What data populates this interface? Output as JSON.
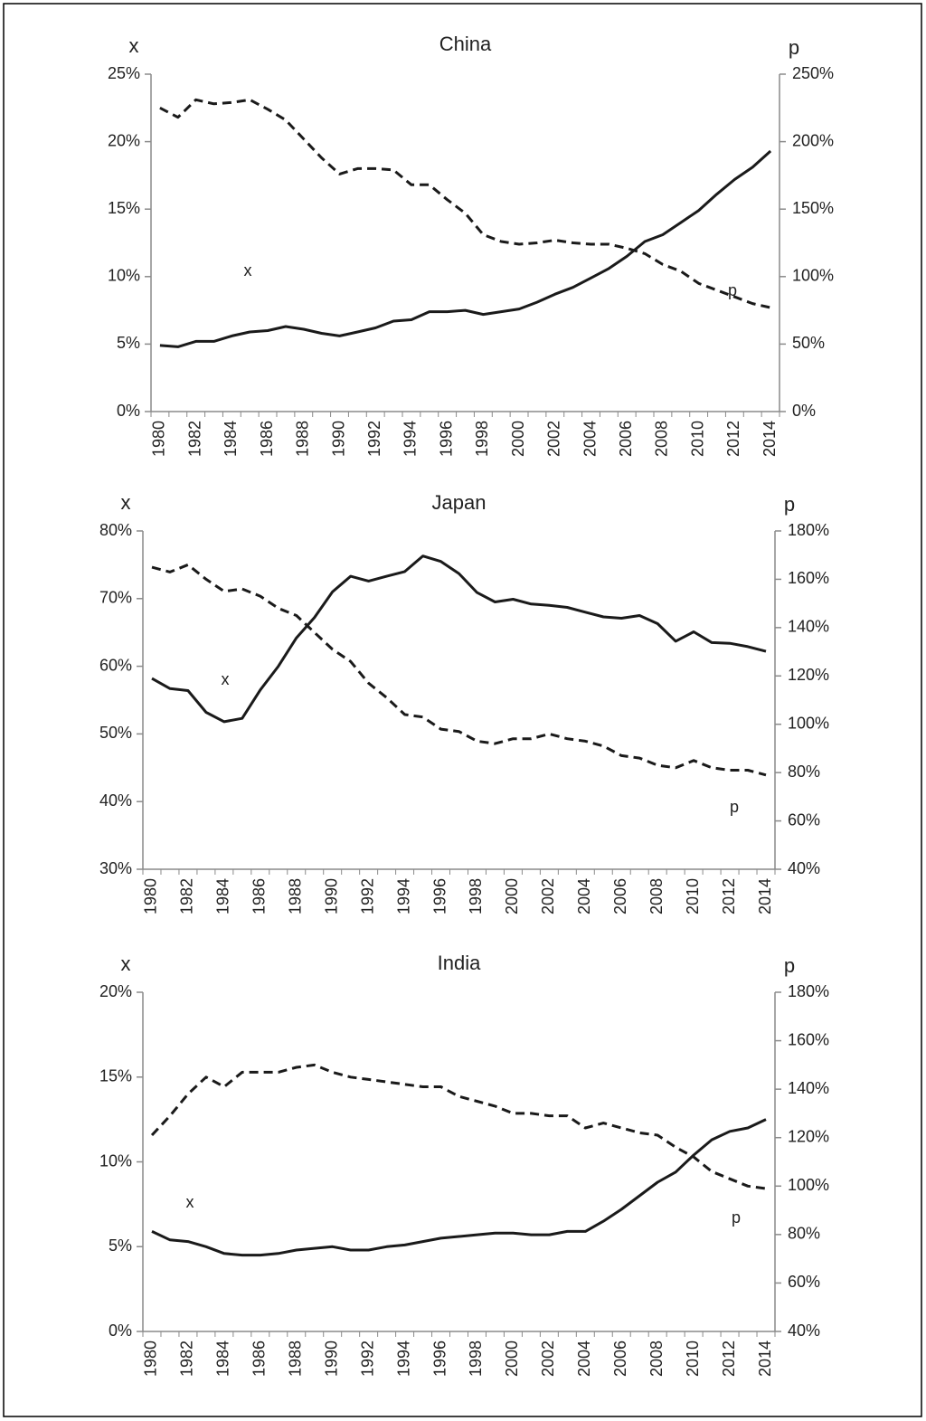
{
  "chart_data": [
    {
      "type": "line",
      "title": "China",
      "ylabel": "x",
      "y2label": "p",
      "categories": [
        "1980",
        null,
        "1982",
        null,
        "1984",
        null,
        "1986",
        null,
        "1988",
        null,
        "1990",
        null,
        "1992",
        null,
        "1994",
        null,
        "1996",
        null,
        "1998",
        null,
        "2000",
        null,
        "2002",
        null,
        "2004",
        null,
        "2006",
        null,
        "2008",
        null,
        "2010",
        null,
        "2012",
        null,
        "2014"
      ],
      "series": [
        {
          "name": "x",
          "color": "#1a1a1a",
          "style": "solid",
          "values": [
            4.9,
            4.8,
            5.2,
            5.2,
            5.6,
            5.9,
            6.0,
            6.3,
            6.1,
            5.8,
            5.6,
            5.9,
            6.2,
            6.7,
            6.8,
            7.4,
            7.4,
            7.5,
            7.2,
            7.4,
            7.6,
            8.1,
            8.7,
            9.2,
            9.9,
            10.6,
            11.5,
            12.6,
            13.1,
            14.0,
            14.9,
            16.1,
            17.2,
            18.1,
            19.3
          ]
        },
        {
          "name": "p",
          "color": "#1a1a1a",
          "style": "dashed",
          "axis": "y2",
          "values": [
            225,
            218,
            231,
            228,
            229,
            231,
            224,
            216,
            202,
            188,
            176,
            180,
            180,
            179,
            168,
            168,
            157,
            147,
            131,
            126,
            124,
            125,
            127,
            125,
            124,
            124,
            121,
            117,
            109,
            104,
            95,
            90,
            85,
            80,
            77
          ]
        }
      ],
      "ylim": [
        0,
        25
      ],
      "yticks": [
        {
          "value": 0,
          "label": "0%"
        },
        {
          "value": 5,
          "label": "5%"
        },
        {
          "value": 10,
          "label": "10%"
        },
        {
          "value": 15,
          "label": "15%"
        },
        {
          "value": 20,
          "label": "20%"
        },
        {
          "value": 25,
          "label": "25%"
        }
      ],
      "y2lim": [
        0,
        250
      ],
      "y2ticks": [
        {
          "value": 0,
          "label": "0%"
        },
        {
          "value": 50,
          "label": "50%"
        },
        {
          "value": 100,
          "label": "100%"
        },
        {
          "value": 150,
          "label": "150%"
        },
        {
          "value": 200,
          "label": "200%"
        },
        {
          "value": 250,
          "label": "250%"
        }
      ],
      "grid": false
    },
    {
      "type": "line",
      "title": "Japan",
      "ylabel": "x",
      "y2label": "p",
      "categories": [
        "1980",
        null,
        "1982",
        null,
        "1984",
        null,
        "1986",
        null,
        "1988",
        null,
        "1990",
        null,
        "1992",
        null,
        "1994",
        null,
        "1996",
        null,
        "1998",
        null,
        "2000",
        null,
        "2002",
        null,
        "2004",
        null,
        "2006",
        null,
        "2008",
        null,
        "2010",
        null,
        "2012",
        null,
        "2014"
      ],
      "series": [
        {
          "name": "x",
          "color": "#1a1a1a",
          "style": "solid",
          "values": [
            58.2,
            56.7,
            56.4,
            53.2,
            51.8,
            52.3,
            56.5,
            60.0,
            64.2,
            67.2,
            71.0,
            73.3,
            72.6,
            73.3,
            74.0,
            76.3,
            75.5,
            73.7,
            70.9,
            69.5,
            69.9,
            69.2,
            69.0,
            68.7,
            68.0,
            67.3,
            67.1,
            67.5,
            66.3,
            63.7,
            65.1,
            63.5,
            63.4,
            62.9,
            62.2
          ]
        },
        {
          "name": "p",
          "color": "#1a1a1a",
          "style": "dashed",
          "axis": "y2",
          "values": [
            165,
            163,
            166,
            160,
            155,
            156,
            153,
            148,
            145,
            138,
            131,
            126,
            117,
            111,
            104,
            103,
            98,
            97,
            93,
            92,
            94,
            94,
            96,
            94,
            93,
            91,
            87,
            86,
            83,
            82,
            85,
            82,
            81,
            81,
            79
          ]
        }
      ],
      "ylim": [
        30,
        80
      ],
      "yticks": [
        {
          "value": 30,
          "label": "30%"
        },
        {
          "value": 40,
          "label": "40%"
        },
        {
          "value": 50,
          "label": "50%"
        },
        {
          "value": 60,
          "label": "60%"
        },
        {
          "value": 70,
          "label": "70%"
        },
        {
          "value": 80,
          "label": "80%"
        }
      ],
      "y2lim": [
        40,
        180
      ],
      "y2ticks": [
        {
          "value": 40,
          "label": "40%"
        },
        {
          "value": 60,
          "label": "60%"
        },
        {
          "value": 80,
          "label": "80%"
        },
        {
          "value": 100,
          "label": "100%"
        },
        {
          "value": 120,
          "label": "120%"
        },
        {
          "value": 140,
          "label": "140%"
        },
        {
          "value": 160,
          "label": "160%"
        },
        {
          "value": 180,
          "label": "180%"
        }
      ],
      "grid": false
    },
    {
      "type": "line",
      "title": "India",
      "ylabel": "x",
      "y2label": "p",
      "categories": [
        "1980",
        null,
        "1982",
        null,
        "1984",
        null,
        "1986",
        null,
        "1988",
        null,
        "1990",
        null,
        "1992",
        null,
        "1994",
        null,
        "1996",
        null,
        "1998",
        null,
        "2000",
        null,
        "2002",
        null,
        "2004",
        null,
        "2006",
        null,
        "2008",
        null,
        "2010",
        null,
        "2012",
        null,
        "2014"
      ],
      "series": [
        {
          "name": "x",
          "color": "#1a1a1a",
          "style": "solid",
          "values": [
            5.9,
            5.4,
            5.3,
            5.0,
            4.6,
            4.5,
            4.5,
            4.6,
            4.8,
            4.9,
            5.0,
            4.8,
            4.8,
            5.0,
            5.1,
            5.3,
            5.5,
            5.6,
            5.7,
            5.8,
            5.8,
            5.7,
            5.7,
            5.9,
            5.9,
            6.5,
            7.2,
            8.0,
            8.8,
            9.4,
            10.4,
            11.3,
            11.8,
            12.0,
            12.5
          ]
        },
        {
          "name": "p",
          "color": "#1a1a1a",
          "style": "dashed",
          "axis": "y2",
          "values": [
            121,
            129,
            138,
            145,
            141,
            147,
            147,
            147,
            149,
            150,
            147,
            145,
            144,
            143,
            142,
            141,
            141,
            137,
            135,
            133,
            130,
            130,
            129,
            129,
            124,
            126,
            124,
            122,
            121,
            116,
            112,
            106,
            103,
            100,
            99
          ]
        }
      ],
      "ylim": [
        0,
        20
      ],
      "yticks": [
        {
          "value": 0,
          "label": "0%"
        },
        {
          "value": 5,
          "label": "5%"
        },
        {
          "value": 10,
          "label": "10%"
        },
        {
          "value": 15,
          "label": "15%"
        },
        {
          "value": 20,
          "label": "20%"
        }
      ],
      "y2lim": [
        40,
        180
      ],
      "y2ticks": [
        {
          "value": 40,
          "label": "40%"
        },
        {
          "value": 60,
          "label": "60%"
        },
        {
          "value": 80,
          "label": "80%"
        },
        {
          "value": 100,
          "label": "100%"
        },
        {
          "value": 120,
          "label": "120%"
        },
        {
          "value": 140,
          "label": "140%"
        },
        {
          "value": 160,
          "label": "160%"
        },
        {
          "value": 180,
          "label": "180%"
        }
      ],
      "grid": false
    }
  ]
}
